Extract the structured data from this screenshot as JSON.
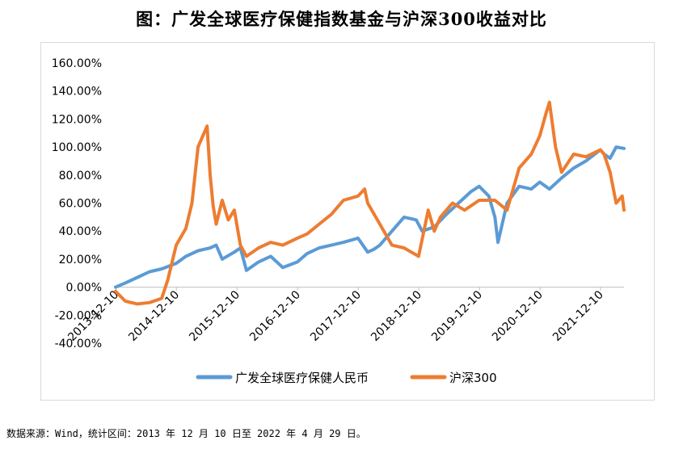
{
  "title": "图：广发全球医疗保健指数基金与沪深300收益对比",
  "source_note": "数据来源：Wind，统计区间：2013 年 12 月 10 日至 2022 年 4 月 29 日。",
  "colors": {
    "fund": "#5b9bd5",
    "csi300": "#ed7d31",
    "axis": "#bfbfbf",
    "border": "#d9d9d9"
  },
  "chart_data": {
    "type": "line",
    "xlabel": "",
    "ylabel": "",
    "y_ticks": [
      "160.00%",
      "140.00%",
      "120.00%",
      "100.00%",
      "80.00%",
      "60.00%",
      "40.00%",
      "20.00%",
      "0.00%",
      "-20.00%",
      "-40.00%"
    ],
    "ylim": [
      -40,
      160
    ],
    "x_ticks": [
      "2013-12-10",
      "2014-12-10",
      "2015-12-10",
      "2016-12-10",
      "2017-12-10",
      "2018-12-10",
      "2019-12-10",
      "2020-12-10",
      "2021-12-10"
    ],
    "xlim": [
      2013.94,
      2022.33
    ],
    "grid": false,
    "legend_position": "bottom",
    "series": [
      {
        "name": "广发全球医疗保健人民币",
        "x": [
          2013.94,
          2014.1,
          2014.3,
          2014.5,
          2014.7,
          2014.94,
          2015.1,
          2015.3,
          2015.5,
          2015.6,
          2015.7,
          2015.9,
          2016.0,
          2016.1,
          2016.3,
          2016.5,
          2016.7,
          2016.94,
          2017.1,
          2017.3,
          2017.5,
          2017.7,
          2017.94,
          2018.1,
          2018.2,
          2018.3,
          2018.5,
          2018.7,
          2018.9,
          2019.0,
          2019.2,
          2019.4,
          2019.6,
          2019.8,
          2019.94,
          2020.1,
          2020.2,
          2020.25,
          2020.4,
          2020.6,
          2020.8,
          2020.94,
          2021.1,
          2021.3,
          2021.5,
          2021.7,
          2021.94,
          2022.0,
          2022.1,
          2022.2,
          2022.33
        ],
        "values": [
          0,
          3,
          7,
          11,
          13,
          17,
          22,
          26,
          28,
          30,
          20,
          25,
          28,
          12,
          18,
          22,
          14,
          18,
          24,
          28,
          30,
          32,
          35,
          25,
          27,
          30,
          40,
          50,
          48,
          40,
          43,
          52,
          60,
          68,
          72,
          65,
          50,
          32,
          60,
          72,
          70,
          75,
          70,
          78,
          85,
          90,
          98,
          95,
          92,
          100,
          99
        ]
      },
      {
        "name": "沪深300",
        "x": [
          2013.94,
          2014.1,
          2014.3,
          2014.5,
          2014.7,
          2014.8,
          2014.94,
          2015.1,
          2015.2,
          2015.3,
          2015.45,
          2015.5,
          2015.55,
          2015.6,
          2015.7,
          2015.8,
          2015.9,
          2016.0,
          2016.1,
          2016.3,
          2016.5,
          2016.7,
          2016.94,
          2017.1,
          2017.3,
          2017.5,
          2017.7,
          2017.94,
          2018.05,
          2018.1,
          2018.3,
          2018.5,
          2018.7,
          2018.94,
          2019.1,
          2019.2,
          2019.3,
          2019.5,
          2019.7,
          2019.94,
          2020.1,
          2020.2,
          2020.4,
          2020.6,
          2020.8,
          2020.94,
          2021.05,
          2021.1,
          2021.2,
          2021.3,
          2021.5,
          2021.7,
          2021.94,
          2022.0,
          2022.1,
          2022.2,
          2022.3,
          2022.33
        ],
        "values": [
          -3,
          -10,
          -12,
          -11,
          -8,
          5,
          30,
          42,
          60,
          100,
          115,
          80,
          58,
          45,
          62,
          48,
          55,
          30,
          22,
          28,
          32,
          30,
          35,
          38,
          45,
          52,
          62,
          65,
          70,
          60,
          45,
          30,
          28,
          22,
          55,
          40,
          50,
          60,
          55,
          62,
          62,
          62,
          55,
          85,
          95,
          108,
          125,
          132,
          100,
          82,
          95,
          93,
          98,
          95,
          82,
          60,
          65,
          55
        ]
      }
    ]
  }
}
